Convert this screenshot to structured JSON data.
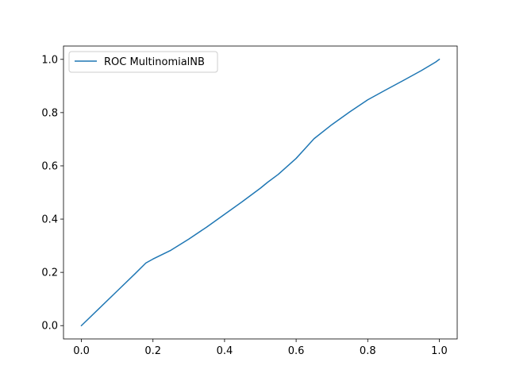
{
  "chart_data": {
    "type": "line",
    "title": "",
    "xlabel": "",
    "ylabel": "",
    "xlim": [
      -0.05,
      1.05
    ],
    "ylim": [
      -0.05,
      1.05
    ],
    "grid": false,
    "legend_position": "top-left",
    "x_ticks": [
      0.0,
      0.2,
      0.4,
      0.6,
      0.8,
      1.0
    ],
    "x_tick_labels": [
      "0.0",
      "0.2",
      "0.4",
      "0.6",
      "0.8",
      "1.0"
    ],
    "y_ticks": [
      0.0,
      0.2,
      0.4,
      0.6,
      0.8,
      1.0
    ],
    "y_tick_labels": [
      "0.0",
      "0.2",
      "0.4",
      "0.6",
      "0.8",
      "1.0"
    ],
    "series": [
      {
        "name": "ROC MultinomialNB",
        "color": "#1f77b4",
        "x": [
          0.0,
          0.05,
          0.1,
          0.15,
          0.18,
          0.2,
          0.25,
          0.3,
          0.35,
          0.4,
          0.45,
          0.5,
          0.52,
          0.55,
          0.6,
          0.65,
          0.7,
          0.75,
          0.8,
          0.85,
          0.9,
          0.95,
          0.99,
          1.0
        ],
        "y": [
          0.0,
          0.065,
          0.13,
          0.195,
          0.235,
          0.25,
          0.283,
          0.325,
          0.37,
          0.418,
          0.466,
          0.516,
          0.538,
          0.568,
          0.628,
          0.702,
          0.755,
          0.803,
          0.848,
          0.885,
          0.921,
          0.958,
          0.99,
          1.0
        ]
      }
    ]
  }
}
